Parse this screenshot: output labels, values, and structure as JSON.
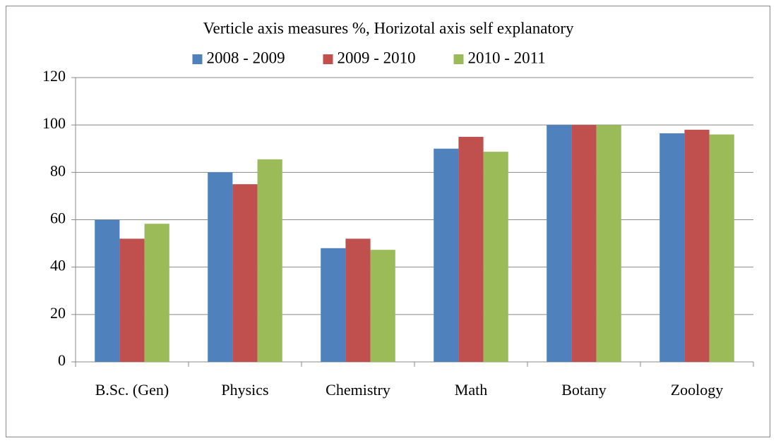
{
  "chart_data": {
    "type": "bar",
    "title": "Verticle axis measures %, Horizotal axis self explanatory",
    "categories": [
      "B.Sc. (Gen)",
      "Physics",
      "Chemistry",
      "Math",
      "Botany",
      "Zoology"
    ],
    "series": [
      {
        "name": "2008 - 2009",
        "color": "#4f81bd",
        "values": [
          60,
          80,
          48,
          90,
          100,
          96.5
        ]
      },
      {
        "name": "2009 - 2010",
        "color": "#c0504d",
        "values": [
          52,
          75,
          52,
          95,
          100,
          98
        ]
      },
      {
        "name": "2010 - 2011",
        "color": "#9bbb59",
        "values": [
          58.3,
          85.5,
          47.3,
          88.7,
          100,
          96
        ]
      }
    ],
    "ylim": [
      0,
      120
    ],
    "yticks": [
      0,
      20,
      40,
      60,
      80,
      100,
      120
    ],
    "grid": true,
    "legend": "top"
  }
}
